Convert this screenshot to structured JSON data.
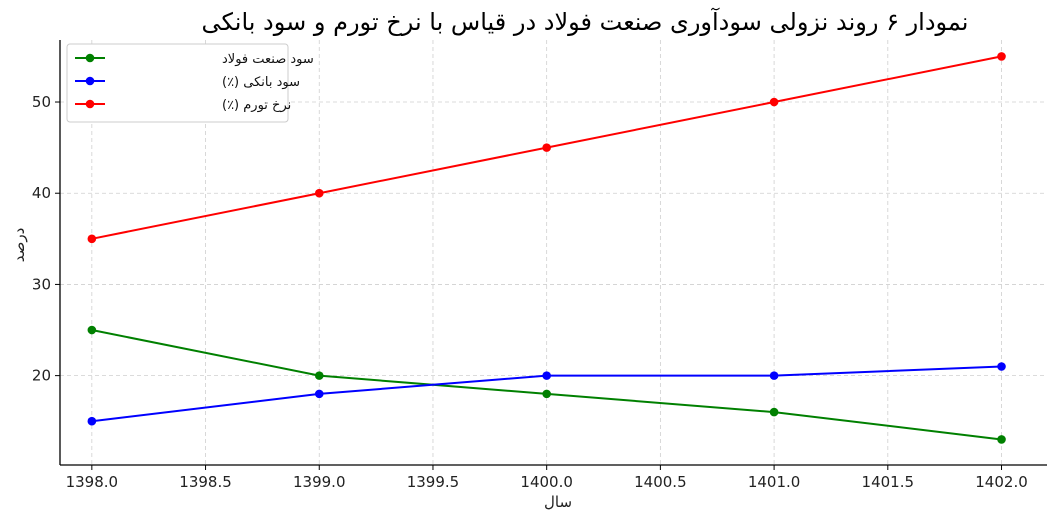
{
  "chart_data": {
    "type": "line",
    "title": "نمودار ۶ روند نزولی سودآوری صنعت فولاد در قیاس با نرخ تورم و سود بانکی",
    "xlabel": "سال",
    "ylabel": "درصد",
    "x": [
      1398,
      1399,
      1400,
      1401,
      1402
    ],
    "xlim": [
      1397.86,
      1402.2
    ],
    "ylim": [
      10.2,
      56.8
    ],
    "xticks": [
      1398.0,
      1398.5,
      1399.0,
      1399.5,
      1400.0,
      1400.5,
      1401.0,
      1401.5,
      1402.0
    ],
    "xtick_labels": [
      "1398.0",
      "1398.5",
      "1399.0",
      "1399.5",
      "1400.0",
      "1400.5",
      "1401.0",
      "1401.5",
      "1402.0"
    ],
    "yticks": [
      20,
      30,
      40,
      50
    ],
    "ytick_labels": [
      "20",
      "30",
      "40",
      "50"
    ],
    "grid": true,
    "legend_position": "top-left",
    "series": [
      {
        "name": "سود صنعت فولاد",
        "values": [
          25,
          20,
          18,
          16,
          13
        ],
        "color": "#008000"
      },
      {
        "name": "سود بانکی (٪)",
        "values": [
          15,
          18,
          20,
          20,
          21
        ],
        "color": "#0000ff"
      },
      {
        "name": "نرخ تورم (٪)",
        "values": [
          35,
          40,
          45,
          50,
          55
        ],
        "color": "#ff0000"
      }
    ]
  }
}
